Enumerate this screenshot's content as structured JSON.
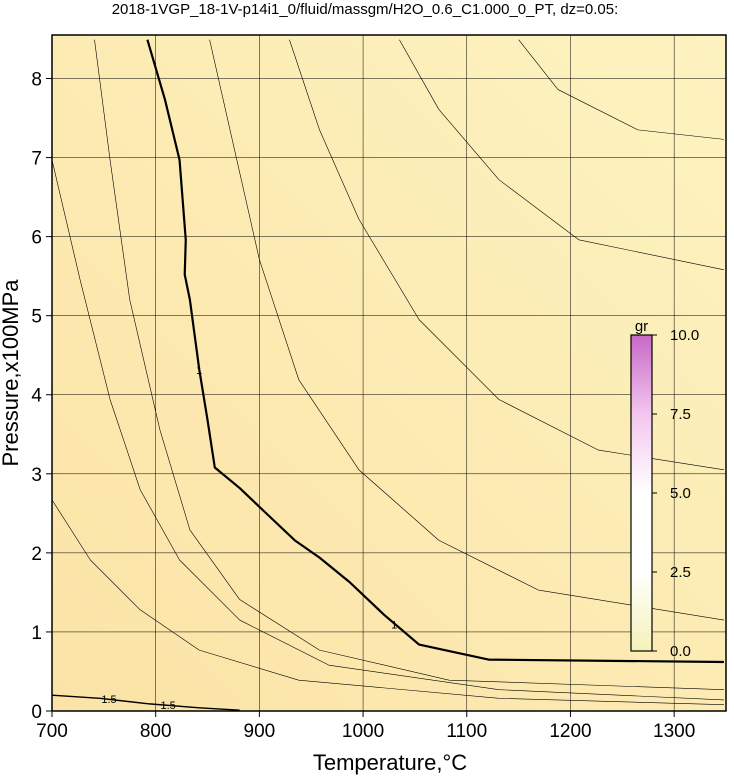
{
  "chart_data": {
    "type": "contour",
    "title": "2018-1VGP_18-1V-p14i1_0/fluid/massgm/H2O_0.6_C1.000_0_PT, dz=0.05:",
    "x_label": "Temperature,°C",
    "y_label": "Pressure,x100MPa",
    "xlim": [
      700,
      1350
    ],
    "ylim": [
      0,
      8.55
    ],
    "xticks": [
      700,
      800,
      900,
      1000,
      1100,
      1200,
      1300
    ],
    "yticks": [
      0,
      1,
      2,
      3,
      4,
      5,
      6,
      7,
      8
    ],
    "grid": true,
    "background": [
      "#fbe3a6",
      "#fdf3c0"
    ],
    "series": [
      {
        "color": "#000000",
        "width": 2.2,
        "x": [
          792,
          809,
          823,
          829,
          828,
          833,
          842,
          850,
          857,
          881,
          905,
          934,
          958,
          987,
          1020,
          1054,
          1121,
          1348
        ],
        "values": [
          8.49,
          7.73,
          6.97,
          5.96,
          5.52,
          5.2,
          4.32,
          3.68,
          3.08,
          2.82,
          2.52,
          2.16,
          1.94,
          1.63,
          1.22,
          0.84,
          0.65,
          0.62
        ],
        "labels": [
          {
            "text": "1",
            "x": 842,
            "y": 4.3
          },
          {
            "text": "1",
            "x": 1030,
            "y": 1.08
          }
        ]
      },
      {
        "color": "#000000",
        "width": 1.4,
        "x": [
          700,
          746,
          794,
          842,
          881
        ],
        "values": [
          0.2,
          0.16,
          0.09,
          0.04,
          0.01
        ],
        "labels": [
          {
            "text": "1.5",
            "x": 755,
            "y": 0.14
          },
          {
            "text": "1.5",
            "x": 812,
            "y": 0.06
          }
        ]
      },
      {
        "color": "#000000",
        "width": 0.6,
        "x": [
          741,
          756,
          775,
          804,
          833,
          881,
          958,
          1083,
          1348
        ],
        "values": [
          8.49,
          6.97,
          5.2,
          3.56,
          2.29,
          1.41,
          0.77,
          0.39,
          0.27
        ]
      },
      {
        "color": "#000000",
        "width": 0.6,
        "x": [
          852,
          876,
          900,
          938,
          996,
          1073,
          1169,
          1348
        ],
        "values": [
          8.49,
          7.1,
          5.71,
          4.19,
          3.05,
          2.16,
          1.53,
          1.15
        ]
      },
      {
        "color": "#000000",
        "width": 0.6,
        "x": [
          929,
          958,
          996,
          1054,
          1131,
          1227,
          1348
        ],
        "values": [
          8.49,
          7.35,
          6.22,
          4.95,
          3.94,
          3.3,
          3.05
        ]
      },
      {
        "color": "#000000",
        "width": 0.6,
        "x": [
          1035,
          1073,
          1131,
          1208,
          1348
        ],
        "values": [
          8.49,
          7.61,
          6.72,
          5.96,
          5.58
        ]
      },
      {
        "color": "#000000",
        "width": 0.6,
        "x": [
          1150,
          1188,
          1265,
          1348
        ],
        "values": [
          8.49,
          7.86,
          7.35,
          7.23
        ]
      },
      {
        "color": "#000000",
        "width": 0.6,
        "x": [
          700,
          727,
          756,
          785,
          823,
          881,
          967,
          1131,
          1348
        ],
        "values": [
          6.97,
          5.46,
          3.94,
          2.8,
          1.91,
          1.15,
          0.58,
          0.27,
          0.14
        ]
      },
      {
        "color": "#000000",
        "width": 0.6,
        "x": [
          700,
          737,
          785,
          842,
          938,
          1131,
          1348
        ],
        "values": [
          2.67,
          1.91,
          1.28,
          0.77,
          0.39,
          0.16,
          0.08
        ]
      }
    ],
    "colorbar": {
      "label": "gr",
      "lim": [
        0,
        10
      ],
      "ticks": [
        {
          "value": 0,
          "label": "0.0"
        },
        {
          "value": 2.5,
          "label": "2.5"
        },
        {
          "value": 5,
          "label": "5.0"
        },
        {
          "value": 7.5,
          "label": "7.5"
        },
        {
          "value": 10,
          "label": "10.0"
        }
      ],
      "colors": [
        "#f4f2b8",
        "#ffffff",
        "#ffffff",
        "#f3c6ee",
        "#c868c8"
      ]
    }
  }
}
